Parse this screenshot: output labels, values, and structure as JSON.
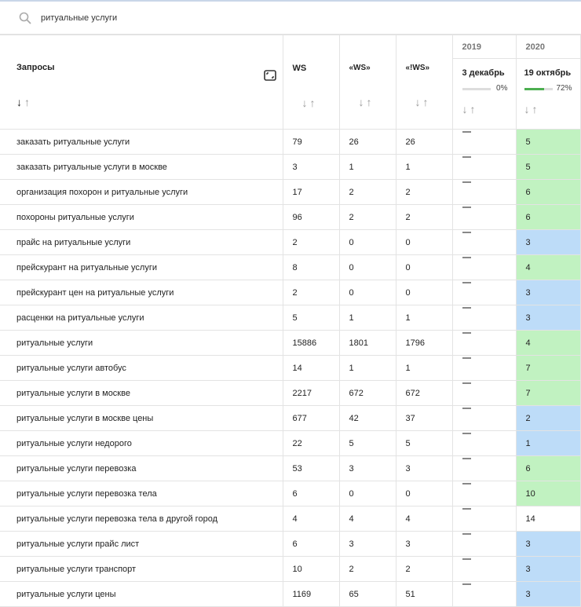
{
  "search": {
    "value": "ритуальные услуги"
  },
  "header": {
    "query": "Запросы",
    "ws": "WS",
    "ws_quoted": "«WS»",
    "ws_excl": "«!WS»",
    "year1": "2019",
    "date1": "3 декабрь",
    "pct1": "0%",
    "progress1": 0,
    "year2": "2020",
    "date2": "19 октябрь",
    "pct2": "72%",
    "progress2": 72
  },
  "colors": {
    "green": "#c1f2c1",
    "blue": "#bddcf8"
  },
  "rows": [
    {
      "q": "заказать ритуальные услуги",
      "ws": "79",
      "wsq": "26",
      "wse": "26",
      "pos": "5",
      "c": "g"
    },
    {
      "q": "заказать ритуальные услуги в москве",
      "ws": "3",
      "wsq": "1",
      "wse": "1",
      "pos": "5",
      "c": "g"
    },
    {
      "q": "организация похорон и ритуальные услуги",
      "ws": "17",
      "wsq": "2",
      "wse": "2",
      "pos": "6",
      "c": "g"
    },
    {
      "q": "похороны ритуальные услуги",
      "ws": "96",
      "wsq": "2",
      "wse": "2",
      "pos": "6",
      "c": "g"
    },
    {
      "q": "прайс на ритуальные услуги",
      "ws": "2",
      "wsq": "0",
      "wse": "0",
      "pos": "3",
      "c": "b"
    },
    {
      "q": "прейскурант на ритуальные услуги",
      "ws": "8",
      "wsq": "0",
      "wse": "0",
      "pos": "4",
      "c": "g"
    },
    {
      "q": "прейскурант цен на ритуальные услуги",
      "ws": "2",
      "wsq": "0",
      "wse": "0",
      "pos": "3",
      "c": "b"
    },
    {
      "q": "расценки на ритуальные услуги",
      "ws": "5",
      "wsq": "1",
      "wse": "1",
      "pos": "3",
      "c": "b"
    },
    {
      "q": "ритуальные услуги",
      "ws": "15886",
      "wsq": "1801",
      "wse": "1796",
      "pos": "4",
      "c": "g"
    },
    {
      "q": "ритуальные услуги автобус",
      "ws": "14",
      "wsq": "1",
      "wse": "1",
      "pos": "7",
      "c": "g"
    },
    {
      "q": "ритуальные услуги в москве",
      "ws": "2217",
      "wsq": "672",
      "wse": "672",
      "pos": "7",
      "c": "g"
    },
    {
      "q": "ритуальные услуги в москве цены",
      "ws": "677",
      "wsq": "42",
      "wse": "37",
      "pos": "2",
      "c": "b"
    },
    {
      "q": "ритуальные услуги недорого",
      "ws": "22",
      "wsq": "5",
      "wse": "5",
      "pos": "1",
      "c": "b"
    },
    {
      "q": "ритуальные услуги перевозка",
      "ws": "53",
      "wsq": "3",
      "wse": "3",
      "pos": "6",
      "c": "g"
    },
    {
      "q": "ритуальные услуги перевозка тела",
      "ws": "6",
      "wsq": "0",
      "wse": "0",
      "pos": "10",
      "c": "g"
    },
    {
      "q": "ритуальные услуги перевозка тела в другой город",
      "ws": "4",
      "wsq": "4",
      "wse": "4",
      "pos": "14",
      "c": ""
    },
    {
      "q": "ритуальные услуги прайс лист",
      "ws": "6",
      "wsq": "3",
      "wse": "3",
      "pos": "3",
      "c": "b"
    },
    {
      "q": "ритуальные услуги транспорт",
      "ws": "10",
      "wsq": "2",
      "wse": "2",
      "pos": "3",
      "c": "b"
    },
    {
      "q": "ритуальные услуги цены",
      "ws": "1169",
      "wsq": "65",
      "wse": "51",
      "pos": "3",
      "c": "b"
    }
  ]
}
